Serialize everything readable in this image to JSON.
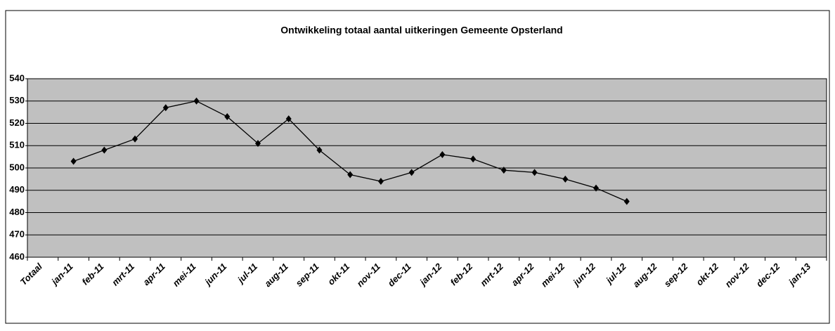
{
  "chart_data": {
    "type": "line",
    "title": "Ontwikkeling totaal aantal uitkeringen Gemeente Opsterland",
    "categories": [
      "Totaal",
      "jan-11",
      "feb-11",
      "mrt-11",
      "apr-11",
      "mei-11",
      "jun-11",
      "jul-11",
      "aug-11",
      "sep-11",
      "okt-11",
      "nov-11",
      "dec-11",
      "jan-12",
      "feb-12",
      "mrt-12",
      "apr-12",
      "mei-12",
      "jun-12",
      "jul-12",
      "aug-12",
      "sep-12",
      "okt-12",
      "nov-12",
      "dec-12",
      "jan-13"
    ],
    "series": [
      {
        "color": "#000000",
        "values": [
          null,
          503,
          508,
          513,
          527,
          530,
          523,
          511,
          522,
          508,
          497,
          494,
          498,
          506,
          504,
          499,
          498,
          495,
          491,
          485,
          null,
          null,
          null,
          null,
          null,
          null
        ]
      }
    ],
    "ylim": [
      460,
      540
    ],
    "yticks": [
      460,
      470,
      480,
      490,
      500,
      510,
      520,
      530,
      540
    ],
    "grid": true,
    "plot_color": "#c0c0c0"
  }
}
